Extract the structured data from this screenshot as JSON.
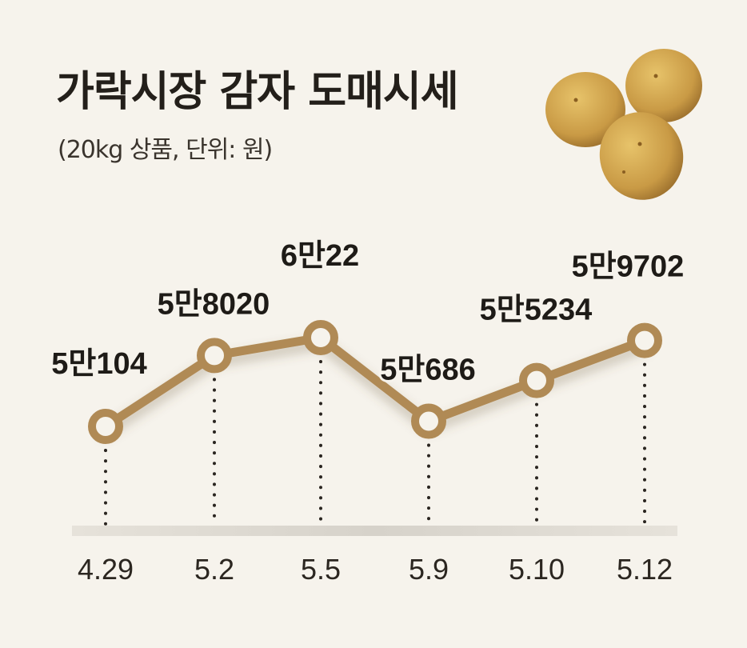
{
  "header": {
    "title": "가락시장 감자 도매시세",
    "subtitle": "(20kg 상품, 단위: 원)"
  },
  "colors": {
    "background": "#f6f3ec",
    "line": "#b08a55",
    "marker_fill": "#f6f3ec",
    "baseline": "#dcd8d0",
    "text": "#1e1b17"
  },
  "icon": "potatoes-illustration",
  "chart_data": {
    "type": "line",
    "title": "가락시장 감자 도매시세",
    "subtitle": "(20kg 상품, 단위: 원)",
    "categories": [
      "4.29",
      "5.2",
      "5.5",
      "5.9",
      "5.10",
      "5.12"
    ],
    "values": [
      50104,
      58020,
      60022,
      50686,
      55234,
      59702
    ],
    "data_labels": [
      "5만104",
      "5만8020",
      "6만22",
      "5만686",
      "5만5234",
      "5만9702"
    ],
    "xlabel": "",
    "ylabel": "",
    "grid": false,
    "legend": "none"
  }
}
